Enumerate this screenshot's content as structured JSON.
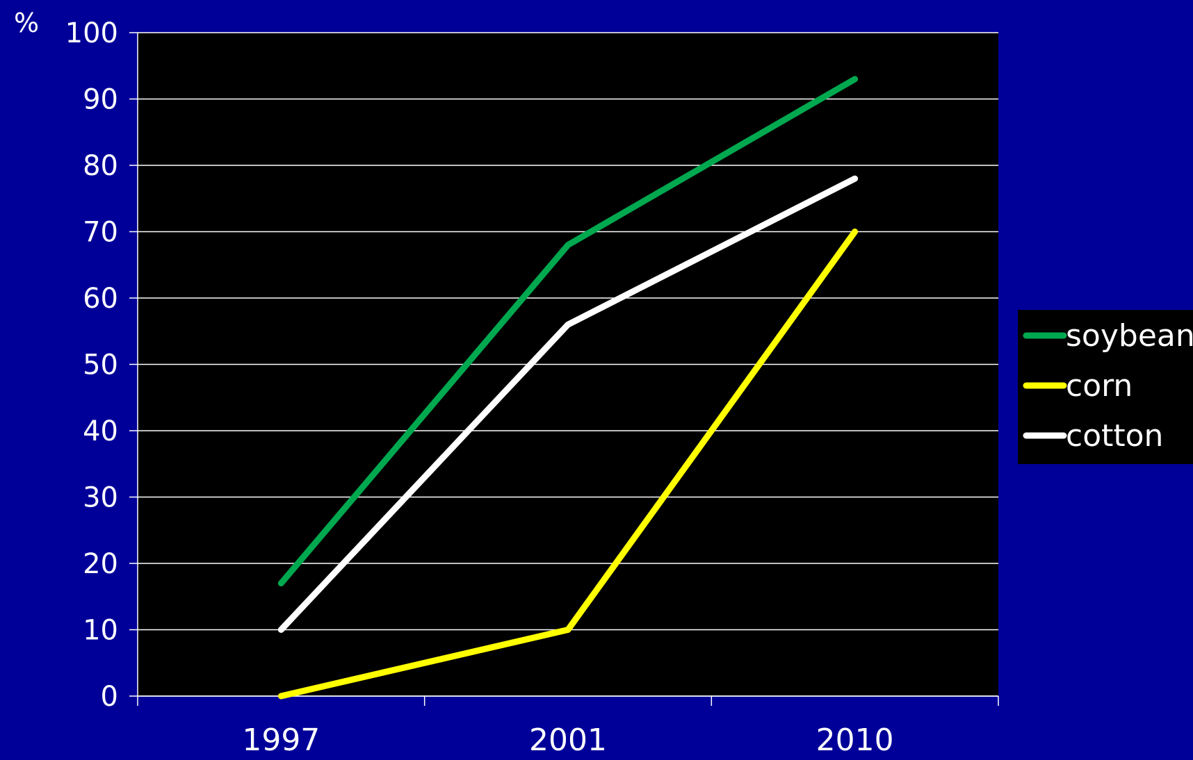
{
  "colors": {
    "page_background": "#000099",
    "plot_background": "#000000",
    "gridline": "#ffffff",
    "text": "#ffffff",
    "legend_background": "#000000"
  },
  "chart_data": {
    "type": "line",
    "title": "",
    "xlabel": "",
    "ylabel": "%",
    "categories": [
      "1997",
      "2001",
      "2010"
    ],
    "ylim": [
      0,
      100
    ],
    "yticks": [
      0,
      10,
      20,
      30,
      40,
      50,
      60,
      70,
      80,
      90,
      100
    ],
    "grid": true,
    "legend_position": "right",
    "series": [
      {
        "name": "soybean",
        "color": "#00a84f",
        "values": [
          17,
          68,
          93
        ]
      },
      {
        "name": "corn",
        "color": "#ffff00",
        "values": [
          0,
          10,
          70
        ]
      },
      {
        "name": "cotton",
        "color": "#ffffff",
        "values": [
          10,
          56,
          78
        ]
      }
    ]
  }
}
